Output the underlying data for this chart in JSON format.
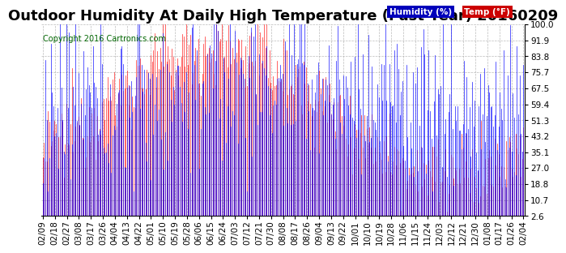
{
  "title": "Outdoor Humidity At Daily High Temperature (Past Year) 20160209",
  "copyright": "Copyright 2016 Cartronics.com",
  "legend_humidity": "Humidity (%)",
  "legend_temp": "Temp (°F)",
  "humidity_color": "#0000ff",
  "temp_color": "#ff0000",
  "bg_color": "#ffffff",
  "plot_bg_color": "#ffffff",
  "grid_color": "#aaaaaa",
  "yticks": [
    2.6,
    10.7,
    18.8,
    27.0,
    35.1,
    43.2,
    51.3,
    59.4,
    67.5,
    75.7,
    83.8,
    91.9,
    100.0
  ],
  "ylim": [
    2.6,
    100.0
  ],
  "title_fontsize": 13,
  "tick_fontsize": 7.5,
  "copyright_fontsize": 7,
  "x_labels": [
    "02/09",
    "02/18",
    "02/27",
    "03/08",
    "03/17",
    "03/26",
    "04/04",
    "04/13",
    "04/22",
    "05/01",
    "05/10",
    "05/19",
    "05/28",
    "06/06",
    "06/15",
    "06/24",
    "07/03",
    "07/12",
    "07/21",
    "07/30",
    "08/08",
    "08/17",
    "08/26",
    "09/04",
    "09/13",
    "09/22",
    "10/01",
    "10/10",
    "10/19",
    "10/28",
    "11/06",
    "11/15",
    "11/24",
    "12/03",
    "12/12",
    "12/21",
    "12/30",
    "01/08",
    "01/17",
    "01/26",
    "02/04"
  ],
  "n_points": 366,
  "seed": 12345
}
